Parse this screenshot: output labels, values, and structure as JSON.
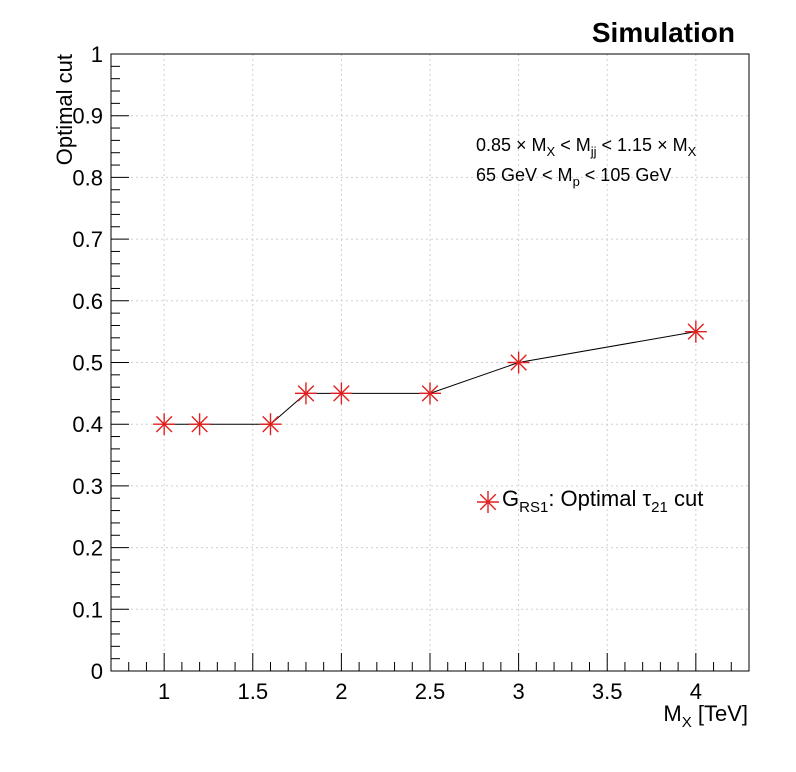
{
  "chart_data": {
    "type": "line",
    "title": "Simulation",
    "xlabel": "M",
    "xlabel_sub": "X",
    "xlabel_unit": " [TeV]",
    "ylabel": "Optimal cut",
    "xlim": [
      0.7,
      4.3
    ],
    "ylim": [
      0,
      1
    ],
    "xticks": [
      1,
      1.5,
      2,
      2.5,
      3,
      3.5,
      4
    ],
    "xtick_labels": [
      "1",
      "1.5",
      "2",
      "2.5",
      "3",
      "3.5",
      "4"
    ],
    "yticks": [
      0,
      0.1,
      0.2,
      0.3,
      0.4,
      0.5,
      0.6,
      0.7,
      0.8,
      0.9,
      1
    ],
    "ytick_labels": [
      "0",
      "0.1",
      "0.2",
      "0.3",
      "0.4",
      "0.5",
      "0.6",
      "0.7",
      "0.8",
      "0.9",
      "1"
    ],
    "grid": true,
    "series": [
      {
        "name": "G_RS1: Optimal τ_21 cut",
        "x": [
          1.0,
          1.2,
          1.6,
          1.8,
          2.0,
          2.5,
          3.0,
          4.0
        ],
        "y": [
          0.4,
          0.4,
          0.4,
          0.45,
          0.45,
          0.45,
          0.5,
          0.55
        ],
        "marker_color": "#e02020",
        "line_color": "#000000"
      }
    ],
    "legend": {
      "placement": "middle-right",
      "symbol": "G",
      "symbol_sub": "RS1",
      "text_mid": ": Optimal ",
      "tau": "τ",
      "tau_sub": "21",
      "text_end": " cut"
    },
    "annotations": {
      "line1": {
        "a": "0.85 × M",
        "a_sub": "X",
        "b": " < M",
        "b_sub": "jj",
        "c": " < 1.15 × M",
        "c_sub": "X"
      },
      "line2": {
        "a": "65 GeV < M",
        "a_sub": "p",
        "b": " < 105 GeV"
      }
    }
  }
}
